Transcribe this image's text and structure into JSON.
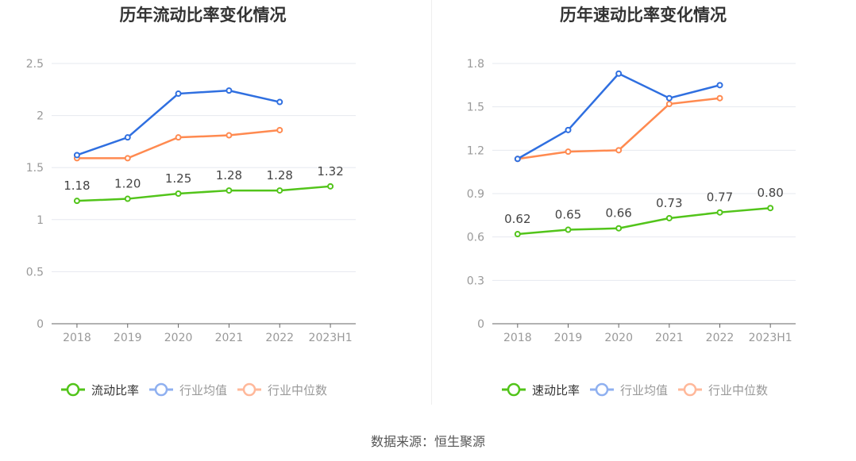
{
  "source": "数据来源：恒生聚源",
  "colors": {
    "main": "#52c41a",
    "avg": "#2f6fe0",
    "median": "#ff8a50",
    "avg_legend": "#8fb0f0",
    "median_legend": "#ffb89a"
  },
  "chart_data": [
    {
      "type": "line",
      "title": "历年流动比率变化情况",
      "categories": [
        "2018",
        "2019",
        "2020",
        "2021",
        "2022",
        "2023H1"
      ],
      "ylim": [
        0,
        2.5
      ],
      "yticks": [
        "0",
        "0.5",
        "1",
        "1.5",
        "2",
        "2.5"
      ],
      "ytick_values": [
        0,
        0.5,
        1,
        1.5,
        2,
        2.5
      ],
      "legend_position": "bottom",
      "series": [
        {
          "name": "流动比率",
          "values": [
            1.18,
            1.2,
            1.25,
            1.28,
            1.28,
            1.32
          ],
          "labels": [
            "1.18",
            "1.20",
            "1.25",
            "1.28",
            "1.28",
            "1.32"
          ]
        },
        {
          "name": "行业均值",
          "values": [
            1.62,
            1.79,
            2.21,
            2.24,
            2.13,
            null
          ]
        },
        {
          "name": "行业中位数",
          "values": [
            1.59,
            1.59,
            1.79,
            1.81,
            1.86,
            null
          ]
        }
      ]
    },
    {
      "type": "line",
      "title": "历年速动比率变化情况",
      "categories": [
        "2018",
        "2019",
        "2020",
        "2021",
        "2022",
        "2023H1"
      ],
      "ylim": [
        0,
        1.8
      ],
      "yticks": [
        "0",
        "0.3",
        "0.6",
        "0.9",
        "1.2",
        "1.5",
        "1.8"
      ],
      "ytick_values": [
        0,
        0.3,
        0.6,
        0.9,
        1.2,
        1.5,
        1.8
      ],
      "legend_position": "bottom",
      "series": [
        {
          "name": "速动比率",
          "values": [
            0.62,
            0.65,
            0.66,
            0.73,
            0.77,
            0.8
          ],
          "labels": [
            "0.62",
            "0.65",
            "0.66",
            "0.73",
            "0.77",
            "0.80"
          ]
        },
        {
          "name": "行业均值",
          "values": [
            1.14,
            1.34,
            1.73,
            1.56,
            1.65,
            null
          ]
        },
        {
          "name": "行业中位数",
          "values": [
            1.14,
            1.19,
            1.2,
            1.52,
            1.56,
            null
          ]
        }
      ]
    }
  ]
}
